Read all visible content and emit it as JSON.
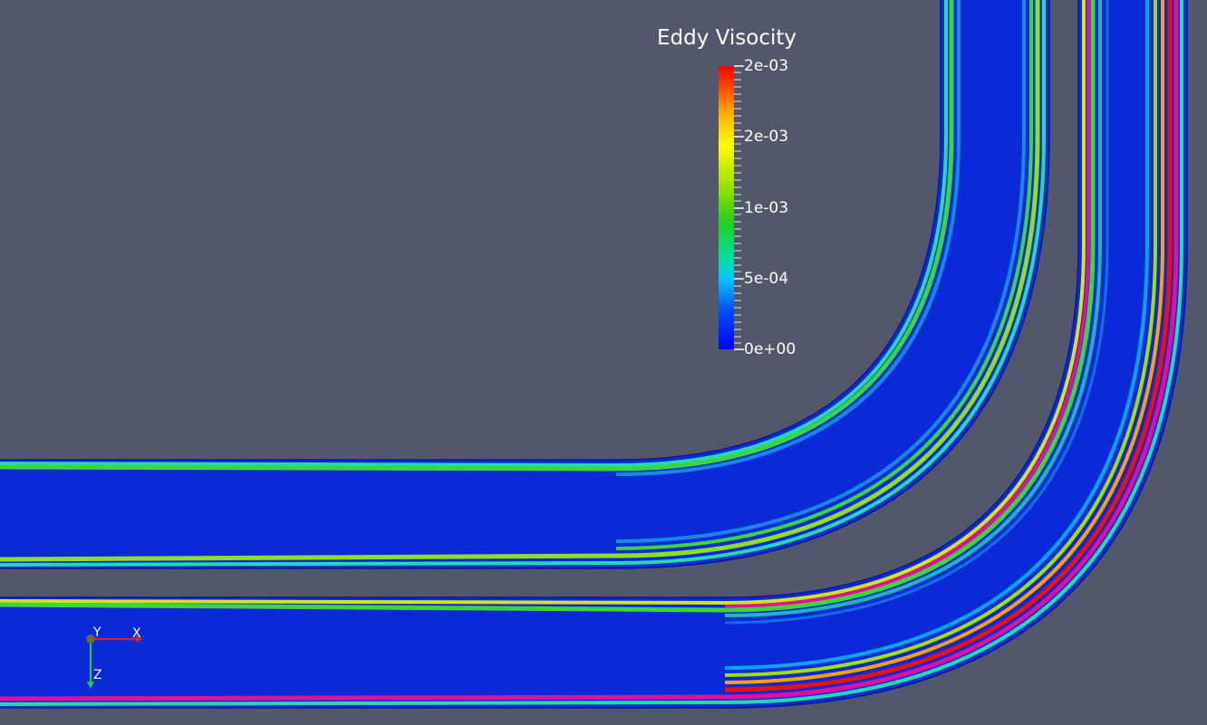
{
  "legend": {
    "title": "Eddy Visocity",
    "ticks": [
      "2e-03",
      "2e-03",
      "1e-03",
      "5e-04",
      "0e+00"
    ],
    "colors": [
      "#0000ff",
      "#0050ff",
      "#00c8ff",
      "#00e0a0",
      "#20d020",
      "#a0e000",
      "#ffff00",
      "#ffa000",
      "#ff4000",
      "#ff0000"
    ]
  },
  "orientation_axes": {
    "x": "X",
    "y": "Y",
    "z": "Z"
  },
  "scene": {
    "background": "#52576b",
    "pipe_fill": "#0a2ad8",
    "wall_green": "#3ad640",
    "wall_red": "#e81010",
    "wall_magenta": "#e0109a"
  }
}
